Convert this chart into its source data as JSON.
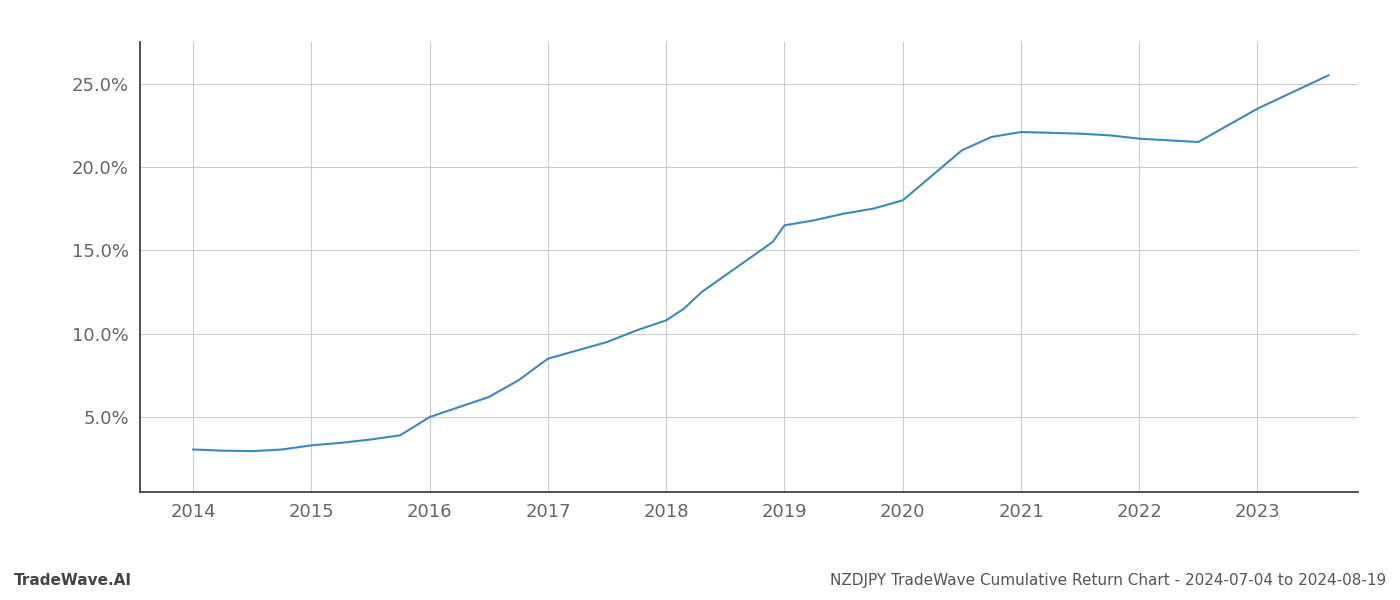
{
  "x": [
    2014.0,
    2014.25,
    2014.5,
    2014.75,
    2015.0,
    2015.25,
    2015.5,
    2015.75,
    2016.0,
    2016.25,
    2016.5,
    2016.75,
    2017.0,
    2017.25,
    2017.5,
    2017.75,
    2018.0,
    2018.15,
    2018.3,
    2018.5,
    2018.7,
    2018.9,
    2019.0,
    2019.25,
    2019.5,
    2019.75,
    2020.0,
    2020.25,
    2020.5,
    2020.75,
    2021.0,
    2021.25,
    2021.5,
    2021.75,
    2022.0,
    2022.25,
    2022.5,
    2022.75,
    2023.0,
    2023.3,
    2023.6
  ],
  "y": [
    3.05,
    2.98,
    2.95,
    3.05,
    3.3,
    3.45,
    3.65,
    3.9,
    5.0,
    5.6,
    6.2,
    7.2,
    8.5,
    9.0,
    9.5,
    10.2,
    10.8,
    11.5,
    12.5,
    13.5,
    14.5,
    15.5,
    16.5,
    16.8,
    17.2,
    17.5,
    18.0,
    19.5,
    21.0,
    21.8,
    22.1,
    22.05,
    22.0,
    21.9,
    21.7,
    21.6,
    21.5,
    22.5,
    23.5,
    24.5,
    25.5
  ],
  "line_color": "#3a8abf",
  "line_width": 1.5,
  "background_color": "#ffffff",
  "grid_color": "#cccccc",
  "footer_left": "TradeWave.AI",
  "footer_right": "NZDJPY TradeWave Cumulative Return Chart - 2024-07-04 to 2024-08-19",
  "xlim": [
    2013.55,
    2023.85
  ],
  "ylim": [
    0.5,
    27.5
  ],
  "yticks": [
    5.0,
    10.0,
    15.0,
    20.0,
    25.0
  ],
  "ytick_labels": [
    "5.0%",
    "10.0%",
    "15.0%",
    "20.0%",
    "25.0%"
  ],
  "xticks": [
    2014,
    2015,
    2016,
    2017,
    2018,
    2019,
    2020,
    2021,
    2022,
    2023
  ],
  "tick_fontsize": 13,
  "footer_fontsize": 11,
  "left_spine_color": "#333333",
  "bottom_spine_color": "#333333"
}
